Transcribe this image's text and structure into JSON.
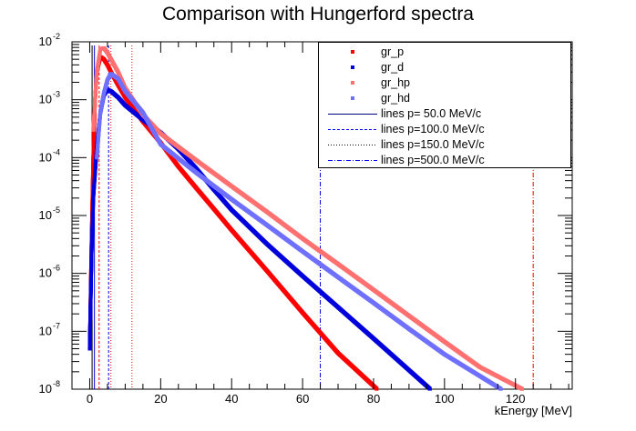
{
  "chart_data": {
    "type": "scatter",
    "title": "Comparison with Hungerford spectra",
    "xlabel": "kEnergy [MeV]",
    "ylabel": "",
    "xlim": [
      -5,
      136
    ],
    "ylim": [
      1e-08,
      0.01
    ],
    "yscale": "log",
    "x_ticks": [
      0,
      20,
      40,
      60,
      80,
      100,
      120
    ],
    "y_ticks": [
      {
        "exp": "-8",
        "value": 1e-08
      },
      {
        "exp": "-7",
        "value": 1e-07
      },
      {
        "exp": "-6",
        "value": 1e-06
      },
      {
        "exp": "-5",
        "value": 1e-05
      },
      {
        "exp": "-4",
        "value": 0.0001
      },
      {
        "exp": "-3",
        "value": 0.001
      },
      {
        "exp": "-2",
        "value": 0.01
      }
    ],
    "legend_position": "top-right",
    "series": [
      {
        "name": "gr_p",
        "color": "#ff0000",
        "points": [
          [
            0,
            5e-08
          ],
          [
            0.5,
            3e-06
          ],
          [
            1,
            0.0001
          ],
          [
            1.5,
            0.001
          ],
          [
            2,
            0.003
          ],
          [
            3,
            0.0055
          ],
          [
            4,
            0.005
          ],
          [
            5,
            0.004
          ],
          [
            6,
            0.003
          ],
          [
            8,
            0.0018
          ],
          [
            10,
            0.0011
          ],
          [
            15,
            0.00042
          ],
          [
            20,
            0.00018
          ],
          [
            25,
            7e-05
          ],
          [
            30,
            3e-05
          ],
          [
            35,
            1.3e-05
          ],
          [
            40,
            5.6e-06
          ],
          [
            50,
            1.1e-06
          ],
          [
            60,
            2.1e-07
          ],
          [
            70,
            4.2e-08
          ],
          [
            81,
            1e-08
          ]
        ]
      },
      {
        "name": "gr_d",
        "color": "#0000dd",
        "points": [
          [
            0,
            5e-08
          ],
          [
            0.5,
            2e-06
          ],
          [
            1,
            2e-05
          ],
          [
            2,
            0.00015
          ],
          [
            3,
            0.0006
          ],
          [
            4,
            0.0012
          ],
          [
            5,
            0.0015
          ],
          [
            6,
            0.0014
          ],
          [
            8,
            0.0011
          ],
          [
            10,
            0.0008
          ],
          [
            15,
            0.00045
          ],
          [
            20,
            0.00027
          ],
          [
            25,
            0.00014
          ],
          [
            30,
            6.5e-05
          ],
          [
            35,
            2.8e-05
          ],
          [
            40,
            1.25e-05
          ],
          [
            50,
            3.2e-06
          ],
          [
            60,
            9e-07
          ],
          [
            70,
            2.6e-07
          ],
          [
            80,
            7.5e-08
          ],
          [
            96,
            1e-08
          ]
        ]
      },
      {
        "name": "gr_hp",
        "color": "#ff7070",
        "points": [
          [
            1,
            0.0003
          ],
          [
            2,
            0.003
          ],
          [
            3,
            0.0075
          ],
          [
            4,
            0.0078
          ],
          [
            5,
            0.0065
          ],
          [
            6,
            0.005
          ],
          [
            8,
            0.003
          ],
          [
            10,
            0.0016
          ],
          [
            15,
            0.00055
          ],
          [
            20,
            0.00026
          ],
          [
            30,
            9e-05
          ],
          [
            40,
            3.2e-05
          ],
          [
            50,
            1.15e-05
          ],
          [
            60,
            4e-06
          ],
          [
            70,
            1.45e-06
          ],
          [
            80,
            5.2e-07
          ],
          [
            90,
            1.85e-07
          ],
          [
            100,
            6.6e-08
          ],
          [
            110,
            2.4e-08
          ],
          [
            122,
            1e-08
          ]
        ]
      },
      {
        "name": "gr_hd",
        "color": "#7070ff",
        "points": [
          [
            2,
            0.0001
          ],
          [
            3,
            0.0006
          ],
          [
            4,
            0.0013
          ],
          [
            5,
            0.0022
          ],
          [
            6,
            0.0028
          ],
          [
            8,
            0.0023
          ],
          [
            10,
            0.0014
          ],
          [
            15,
            0.0006
          ],
          [
            20,
            0.00017
          ],
          [
            30,
            5.5e-05
          ],
          [
            40,
            1.9e-05
          ],
          [
            50,
            6.8e-06
          ],
          [
            60,
            2.4e-06
          ],
          [
            70,
            8.6e-07
          ],
          [
            80,
            3.1e-07
          ],
          [
            90,
            1.1e-07
          ],
          [
            100,
            4e-08
          ],
          [
            116,
            1e-08
          ]
        ]
      }
    ],
    "lines": [
      {
        "name": "lines p= 50.0 MeV/c",
        "style": "solid",
        "color": "#000080",
        "markers": [
          {
            "x": 0.67,
            "color": "#000000"
          },
          {
            "x": 1.33,
            "color": "#0000dd"
          }
        ]
      },
      {
        "name": "lines p=100.0 MeV/c",
        "style": "dashed",
        "color": "#0000ff",
        "markers": [
          {
            "x": 2.66,
            "color": "#ff0000"
          },
          {
            "x": 5.32,
            "color": "#0000dd"
          }
        ]
      },
      {
        "name": "lines p=150.0 MeV/c",
        "style": "dotted",
        "color": "#000000",
        "markers": [
          {
            "x": 5.97,
            "color": "#ff0000"
          },
          {
            "x": 11.9,
            "color": "#ff0000"
          }
        ]
      },
      {
        "name": "lines p=500.0 MeV/c",
        "style": "dashdot",
        "color": "#0000ff",
        "markers": [
          {
            "x": 65.0,
            "color": "#0000dd"
          },
          {
            "x": 125.0,
            "color": "#ff0000"
          }
        ]
      }
    ]
  }
}
